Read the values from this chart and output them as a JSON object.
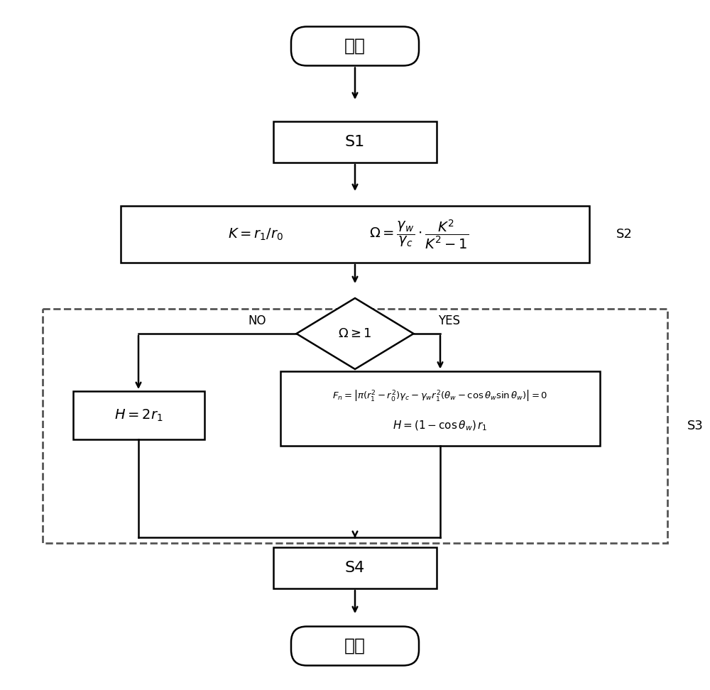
{
  "bg_color": "#ffffff",
  "line_color": "#000000",
  "text_color": "#000000",
  "fig_width": 10.0,
  "fig_height": 9.72,
  "start_label": "开始",
  "end_label": "结束",
  "s1_label": "S1",
  "s2_label": "S2",
  "s3_label": "S3",
  "s4_label": "S4",
  "no_label": "NO",
  "yes_label": "YES",
  "diamond_label": "$\\Omega \\geq 1$",
  "s2_formula_left": "$K = r_1 / r_0$",
  "s2_formula_right": "$\\Omega = \\dfrac{\\gamma_w}{\\gamma_c} \\cdot \\dfrac{K^2}{K^2 - 1}$",
  "fn_formula1": "$F_n = \\left|\\pi(r_1^2 - r_0^2)\\gamma_c - \\gamma_w r_1^2(\\theta_w - \\cos\\theta_w \\sin\\theta_w)\\right| = 0$",
  "fn_formula2": "$H = (1 - \\cos\\theta_w)\\, r_1$",
  "h2r_formula": "$H = 2r_1$"
}
